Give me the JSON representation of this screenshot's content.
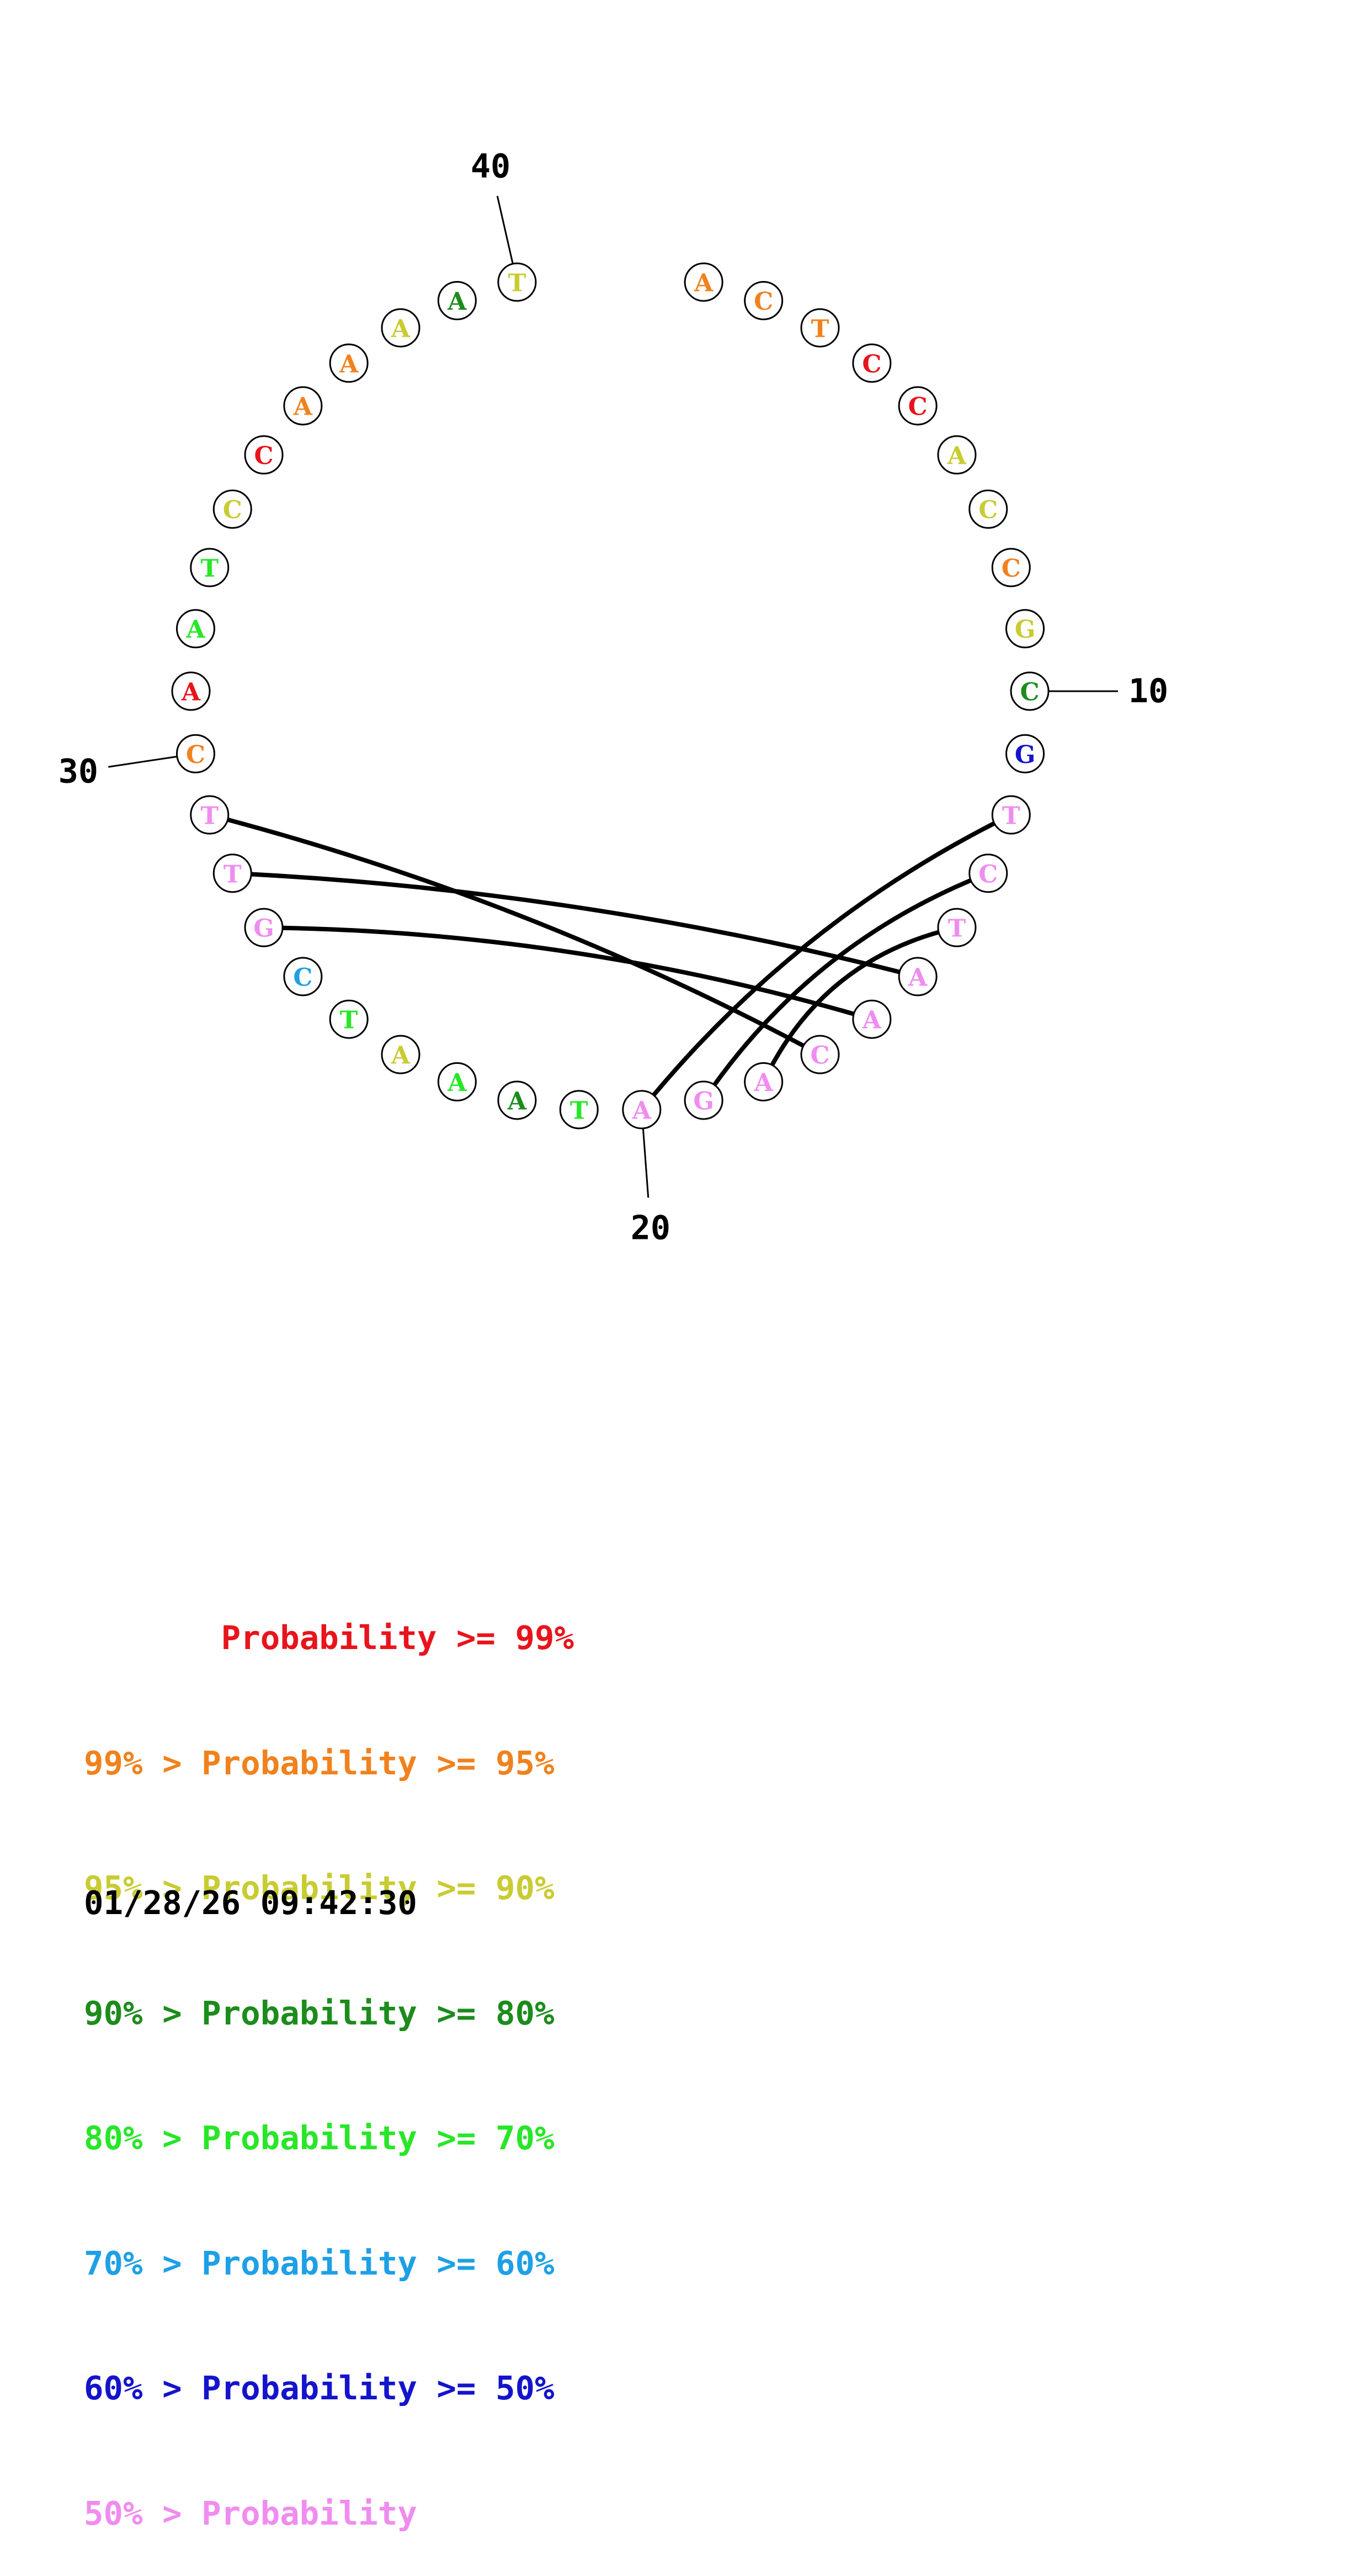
{
  "colors": {
    "p99": "#e8141c",
    "p95": "#f0821e",
    "p90": "#c8cc32",
    "p80": "#1c8c1c",
    "p70": "#28e628",
    "p60": "#1ea0e6",
    "p50": "#1414cc",
    "plow": "#f08cf0"
  },
  "sequence": [
    {
      "base": "A",
      "color": "p95"
    },
    {
      "base": "C",
      "color": "p95"
    },
    {
      "base": "T",
      "color": "p95"
    },
    {
      "base": "C",
      "color": "p99"
    },
    {
      "base": "C",
      "color": "p99"
    },
    {
      "base": "A",
      "color": "p90"
    },
    {
      "base": "C",
      "color": "p90"
    },
    {
      "base": "C",
      "color": "p95"
    },
    {
      "base": "G",
      "color": "p90"
    },
    {
      "base": "C",
      "color": "p80"
    },
    {
      "base": "G",
      "color": "p50"
    },
    {
      "base": "T",
      "color": "plow"
    },
    {
      "base": "C",
      "color": "plow"
    },
    {
      "base": "T",
      "color": "plow"
    },
    {
      "base": "A",
      "color": "plow"
    },
    {
      "base": "A",
      "color": "plow"
    },
    {
      "base": "C",
      "color": "plow"
    },
    {
      "base": "A",
      "color": "plow"
    },
    {
      "base": "G",
      "color": "plow"
    },
    {
      "base": "A",
      "color": "plow"
    },
    {
      "base": "T",
      "color": "p70"
    },
    {
      "base": "A",
      "color": "p80"
    },
    {
      "base": "A",
      "color": "p70"
    },
    {
      "base": "A",
      "color": "p90"
    },
    {
      "base": "T",
      "color": "p70"
    },
    {
      "base": "C",
      "color": "p60"
    },
    {
      "base": "G",
      "color": "plow"
    },
    {
      "base": "T",
      "color": "plow"
    },
    {
      "base": "T",
      "color": "plow"
    },
    {
      "base": "C",
      "color": "p95"
    },
    {
      "base": "A",
      "color": "p99"
    },
    {
      "base": "A",
      "color": "p70"
    },
    {
      "base": "T",
      "color": "p70"
    },
    {
      "base": "C",
      "color": "p90"
    },
    {
      "base": "C",
      "color": "p99"
    },
    {
      "base": "A",
      "color": "p95"
    },
    {
      "base": "A",
      "color": "p95"
    },
    {
      "base": "A",
      "color": "p90"
    },
    {
      "base": "A",
      "color": "p80"
    },
    {
      "base": "T",
      "color": "p90"
    }
  ],
  "pairs": [
    [
      12,
      20
    ],
    [
      13,
      19
    ],
    [
      14,
      18
    ],
    [
      15,
      28
    ],
    [
      16,
      27
    ],
    [
      17,
      29
    ]
  ],
  "tick_labels": [
    {
      "position": 10,
      "label": "10"
    },
    {
      "position": 20,
      "label": "20"
    },
    {
      "position": 30,
      "label": "30"
    },
    {
      "position": 40,
      "label": "40"
    }
  ],
  "legend": [
    {
      "text": "       Probability >= 99%",
      "color": "p99"
    },
    {
      "text": "99% > Probability >= 95%",
      "color": "p95"
    },
    {
      "text": "95% > Probability >= 90%",
      "color": "p90"
    },
    {
      "text": "90% > Probability >= 80%",
      "color": "p80"
    },
    {
      "text": "80% > Probability >= 70%",
      "color": "p70"
    },
    {
      "text": "70% > Probability >= 60%",
      "color": "p60"
    },
    {
      "text": "60% > Probability >= 50%",
      "color": "p50"
    },
    {
      "text": "50% > Probability",
      "color": "plow"
    }
  ],
  "timestamp": "01/28/26 09:42:30"
}
